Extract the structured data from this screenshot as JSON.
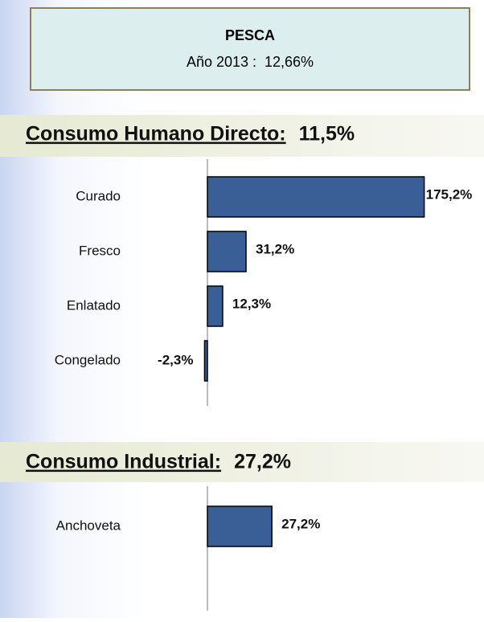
{
  "header": {
    "title": "PESCA",
    "subtitle": "Año 2013 :  12,66%"
  },
  "chart_data": [
    {
      "type": "bar",
      "orientation": "horizontal",
      "title": "Consumo Humano Directo:",
      "total": "11,5%",
      "categories": [
        "Curado",
        "Fresco",
        "Enlatado",
        "Congelado"
      ],
      "values": [
        175.2,
        31.2,
        12.3,
        -2.3
      ],
      "value_labels": [
        "175,2%",
        "31,2%",
        "12,3%",
        "-2,3%"
      ],
      "color": "#3a5f96",
      "xlim": [
        -5,
        180
      ]
    },
    {
      "type": "bar",
      "orientation": "horizontal",
      "title": "Consumo Industrial:",
      "total": "27,2%",
      "categories": [
        "Anchoveta"
      ],
      "values": [
        27.2
      ],
      "value_labels": [
        "27,2%"
      ],
      "color": "#3a5f96",
      "xlim": [
        -5,
        94
      ]
    }
  ]
}
